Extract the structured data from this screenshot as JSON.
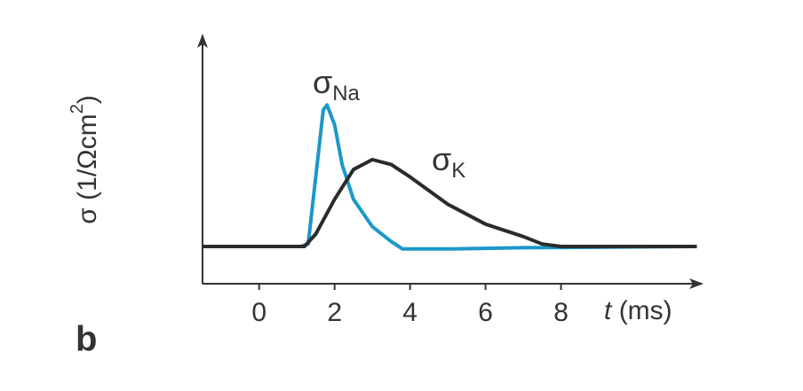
{
  "chart_data": {
    "type": "line",
    "panel_label": "b",
    "xlabel": {
      "var": "t",
      "unit": "(ms)"
    },
    "ylabel": {
      "text": "σ (1/Ωcm",
      "sup": "2",
      "end": ")"
    },
    "xlim": [
      -1.5,
      11.8
    ],
    "ylim": [
      0,
      10
    ],
    "xticks": [
      0,
      2,
      4,
      6,
      8
    ],
    "series": [
      {
        "name": "σ",
        "sub": "Na",
        "color": "#1b98c8",
        "x": [
          -1.5,
          1.1,
          1.3,
          1.5,
          1.7,
          1.8,
          2.0,
          2.2,
          2.5,
          3.0,
          3.5,
          3.8,
          5.0,
          7.0,
          11.6
        ],
        "values": [
          1.5,
          1.5,
          1.6,
          4.3,
          7.0,
          7.2,
          6.4,
          4.8,
          3.4,
          2.3,
          1.7,
          1.4,
          1.4,
          1.45,
          1.5
        ]
      },
      {
        "name": "σ",
        "sub": "K",
        "color": "#2b2b2b",
        "x": [
          -1.5,
          1.2,
          1.5,
          2.0,
          2.5,
          3.0,
          3.5,
          4.0,
          5.0,
          6.0,
          7.0,
          7.5,
          8.0,
          11.6
        ],
        "values": [
          1.5,
          1.5,
          2.0,
          3.4,
          4.6,
          5.0,
          4.8,
          4.3,
          3.2,
          2.4,
          1.9,
          1.6,
          1.5,
          1.5
        ]
      }
    ]
  }
}
